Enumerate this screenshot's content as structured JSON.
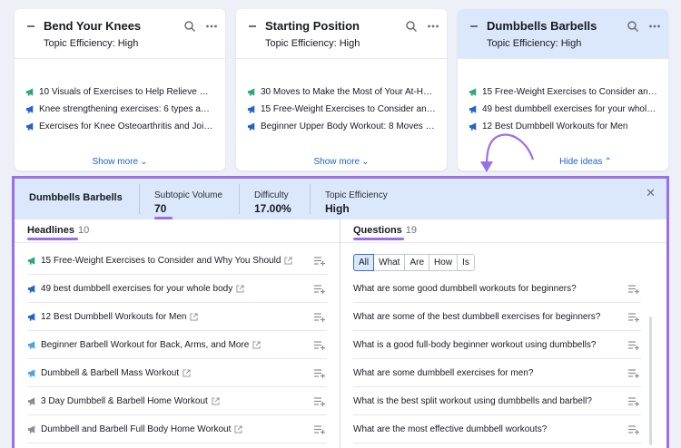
{
  "cards": [
    {
      "title": "Bend Your Knees",
      "efficiency": "Topic Efficiency: High",
      "ideas": [
        {
          "text": "10 Visuals of Exercises to Help Relieve Knee...",
          "icon_color": "#2ca77b"
        },
        {
          "text": "Knee strengthening exercises: 6 types and ...",
          "icon_color": "#2462c9"
        },
        {
          "text": "Exercises for Knee Osteoarthritis and Joint ...",
          "icon_color": "#2462c9"
        }
      ],
      "footer": "Show more"
    },
    {
      "title": "Starting Position",
      "efficiency": "Topic Efficiency: High",
      "ideas": [
        {
          "text": "30 Moves to Make the Most of Your At-Hom...",
          "icon_color": "#2ca77b"
        },
        {
          "text": "15 Free-Weight Exercises to Consider and ...",
          "icon_color": "#2462c9"
        },
        {
          "text": "Beginner Upper Body Workout: 8 Moves to ...",
          "icon_color": "#2462c9"
        }
      ],
      "footer": "Show more"
    },
    {
      "title": "Dumbbells Barbells",
      "efficiency": "Topic Efficiency: High",
      "ideas": [
        {
          "text": "15 Free-Weight Exercises to Consider and ...",
          "icon_color": "#2ca77b"
        },
        {
          "text": "49 best dumbbell exercises for your whole ...",
          "icon_color": "#2462c9"
        },
        {
          "text": "12 Best Dumbbell Workouts for Men",
          "icon_color": "#2462c9"
        }
      ],
      "footer": "Hide ideas"
    }
  ],
  "panel": {
    "topic": "Dumbbells Barbells",
    "volume_label": "Subtopic Volume",
    "volume_value": "70",
    "difficulty_label": "Difficulty",
    "difficulty_value": "17.00%",
    "efficiency_label": "Topic Efficiency",
    "efficiency_value": "High"
  },
  "headlines": {
    "label": "Headlines",
    "count": "10",
    "items": [
      {
        "text": "15 Free-Weight Exercises to Consider and Why You Should",
        "icon_color": "#2ca77b"
      },
      {
        "text": "49 best dumbbell exercises for your whole body",
        "icon_color": "#2462c9"
      },
      {
        "text": "12 Best Dumbbell Workouts for Men",
        "icon_color": "#2462c9"
      },
      {
        "text": "Beginner Barbell Workout for Back, Arms, and More",
        "icon_color": "#4aa3e8"
      },
      {
        "text": "Dumbbell & Barbell Mass Workout",
        "icon_color": "#4aa3e8"
      },
      {
        "text": "3 Day Dumbbell & Barbell Home Workout",
        "icon_color": "#8a8d99"
      },
      {
        "text": "Dumbbell and Barbell Full Body Home Workout",
        "icon_color": "#8a8d99"
      }
    ]
  },
  "questions": {
    "label": "Questions",
    "count": "19",
    "filters": [
      "All",
      "What",
      "Are",
      "How",
      "Is"
    ],
    "active_filter": "All",
    "items": [
      "What are some good dumbbell workouts for beginners?",
      "What are some of the best dumbbell exercises for beginners?",
      "What is a good full-body beginner workout using dumbbells?",
      "What are some dumbbell exercises for men?",
      "What is the best split workout using dumbbells and barbell?",
      "What are the most effective dumbbell workouts?"
    ]
  },
  "colors": {
    "accent": "#9a6fe9",
    "link": "#2462c9",
    "selected_bg": "#dbe8fb"
  }
}
